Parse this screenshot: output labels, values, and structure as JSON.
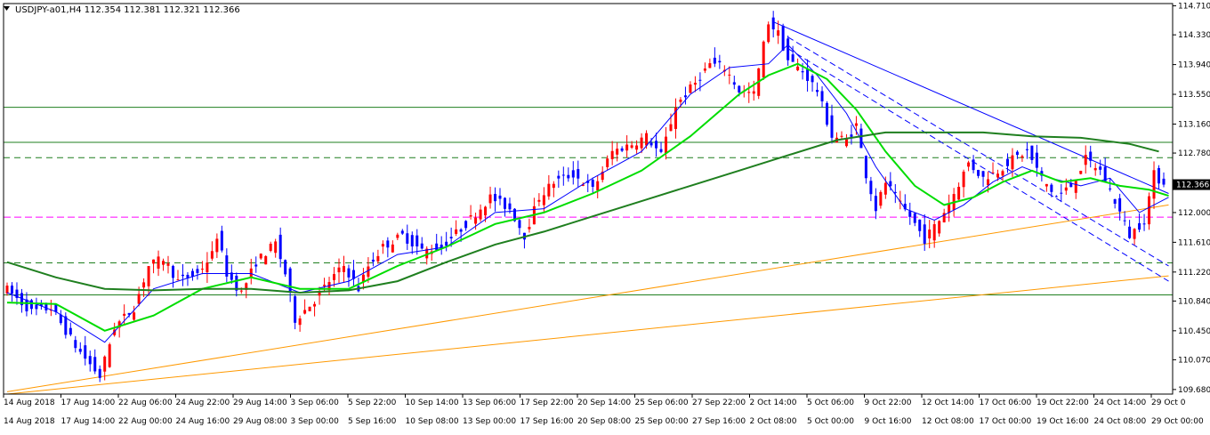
{
  "header": {
    "symbol_line": "USDJPY-a01,H4  112.354 112.381 112.321 112.366",
    "dropdown_icon": "triangle-down-icon"
  },
  "colors": {
    "background": "#ffffff",
    "grid_fill": "#ffffff",
    "bull": "#ff0000",
    "bear": "#0000ff",
    "ma_fast": "#0000ff",
    "ma_mid": "#00dd00",
    "ma_slow": "#1f7f1f",
    "hline": "#1f7f1f",
    "magenta_line": "#ff00ff",
    "trend_orange": "#ff9900",
    "trend_blue": "#0000ff",
    "price_tag_bg": "#000000",
    "price_tag_text": "#ffffff"
  },
  "chart_data": {
    "type": "candlestick",
    "title": "USDJPY-a01,H4",
    "ohlc_readout": {
      "open": 112.354,
      "high": 112.381,
      "low": 112.321,
      "close": 112.366
    },
    "current_price": "112.366",
    "y_ticks": [
      "114.710",
      "114.330",
      "113.940",
      "113.550",
      "113.160",
      "112.780",
      "112.000",
      "111.610",
      "111.220",
      "110.840",
      "110.450",
      "110.070",
      "109.680"
    ],
    "ylim": [
      109.62,
      114.74
    ],
    "x_ticks_top": [
      "14 Aug 2018",
      "17 Aug 14:00",
      "22 Aug 06:00",
      "24 Aug 22:00",
      "29 Aug 14:00",
      "3 Sep 06:00",
      "5 Sep 22:00",
      "10 Sep 14:00",
      "13 Sep 06:00",
      "17 Sep 22:00",
      "20 Sep 14:00",
      "25 Sep 06:00",
      "27 Sep 22:00",
      "2 Oct 14:00",
      "5 Oct 06:00",
      "9 Oct 22:00",
      "12 Oct 14:00",
      "17 Oct 06:00",
      "19 Oct 22:00",
      "24 Oct 14:00",
      "29 Oct 0"
    ],
    "x_ticks_bottom": [
      "14 Aug 2018",
      "17 Aug 14:00",
      "22 Aug 00:00",
      "24 Aug 16:00",
      "29 Aug 08:00",
      "3 Sep 00:00",
      "5 Sep 16:00",
      "10 Sep 08:00",
      "13 Sep 00:00",
      "17 Sep 16:00",
      "20 Sep 08:00",
      "25 Sep 00:00",
      "27 Sep 16:00",
      "2 Oct 08:00",
      "5 Oct 00:00",
      "9 Oct 16:00",
      "12 Oct 08:00",
      "17 Oct 00:00",
      "19 Oct 16:00",
      "24 Oct 08:00",
      "29 Oct 00:00"
    ],
    "horizontal_lines": [
      {
        "price": 113.38,
        "style": "solid",
        "color": "hline"
      },
      {
        "price": 112.92,
        "style": "solid",
        "color": "hline"
      },
      {
        "price": 112.72,
        "style": "dashed",
        "color": "hline"
      },
      {
        "price": 111.34,
        "style": "dashed",
        "color": "hline"
      },
      {
        "price": 110.92,
        "style": "solid",
        "color": "hline"
      },
      {
        "price": 111.94,
        "style": "dashed",
        "color": "magenta_line"
      }
    ],
    "price_path": [
      [
        0,
        111.05
      ],
      [
        6,
        110.7
      ],
      [
        10,
        110.75
      ],
      [
        15,
        110.25
      ],
      [
        20,
        109.85
      ],
      [
        23,
        110.5
      ],
      [
        27,
        110.75
      ],
      [
        30,
        111.3
      ],
      [
        33,
        111.4
      ],
      [
        36,
        111.1
      ],
      [
        40,
        111.2
      ],
      [
        43,
        111.45
      ],
      [
        44,
        111.7
      ],
      [
        46,
        111.2
      ],
      [
        49,
        110.95
      ],
      [
        52,
        111.35
      ],
      [
        56,
        111.6
      ],
      [
        58,
        111.2
      ],
      [
        60,
        110.6
      ],
      [
        64,
        110.85
      ],
      [
        67,
        111.1
      ],
      [
        70,
        111.3
      ],
      [
        73,
        111.0
      ],
      [
        75,
        111.3
      ],
      [
        78,
        111.55
      ],
      [
        82,
        111.7
      ],
      [
        86,
        111.5
      ],
      [
        90,
        111.55
      ],
      [
        95,
        111.85
      ],
      [
        100,
        112.2
      ],
      [
        104,
        112.05
      ],
      [
        107,
        111.7
      ],
      [
        110,
        112.2
      ],
      [
        113,
        112.4
      ],
      [
        117,
        112.5
      ],
      [
        121,
        112.3
      ],
      [
        125,
        112.8
      ],
      [
        129,
        112.9
      ],
      [
        132,
        113.0
      ],
      [
        135,
        112.75
      ],
      [
        138,
        113.4
      ],
      [
        142,
        113.7
      ],
      [
        145,
        113.95
      ],
      [
        148,
        113.9
      ],
      [
        151,
        113.6
      ],
      [
        154,
        113.55
      ],
      [
        156,
        114.2
      ],
      [
        157,
        114.5
      ],
      [
        159,
        114.35
      ],
      [
        161,
        114.0
      ],
      [
        164,
        113.85
      ],
      [
        167,
        113.6
      ],
      [
        170,
        113.0
      ],
      [
        173,
        112.95
      ],
      [
        175,
        113.15
      ],
      [
        177,
        112.5
      ],
      [
        179,
        112.05
      ],
      [
        181,
        112.4
      ],
      [
        184,
        112.1
      ],
      [
        186,
        111.95
      ],
      [
        189,
        111.65
      ],
      [
        192,
        111.9
      ],
      [
        195,
        112.25
      ],
      [
        198,
        112.65
      ],
      [
        201,
        112.45
      ],
      [
        204,
        112.55
      ],
      [
        207,
        112.7
      ],
      [
        210,
        112.8
      ],
      [
        213,
        112.45
      ],
      [
        216,
        112.2
      ],
      [
        219,
        112.35
      ],
      [
        222,
        112.7
      ],
      [
        225,
        112.55
      ],
      [
        228,
        112.15
      ],
      [
        231,
        111.7
      ],
      [
        234,
        111.9
      ],
      [
        236,
        112.5
      ],
      [
        238,
        112.37
      ]
    ],
    "moving_averages": [
      {
        "name": "fast",
        "color": "ma_fast",
        "period_label": "",
        "points": [
          [
            0,
            110.95
          ],
          [
            10,
            110.7
          ],
          [
            20,
            110.3
          ],
          [
            30,
            111.0
          ],
          [
            40,
            111.2
          ],
          [
            50,
            111.2
          ],
          [
            60,
            110.95
          ],
          [
            70,
            111.1
          ],
          [
            80,
            111.45
          ],
          [
            90,
            111.55
          ],
          [
            100,
            112.0
          ],
          [
            110,
            112.05
          ],
          [
            120,
            112.45
          ],
          [
            130,
            112.8
          ],
          [
            140,
            113.55
          ],
          [
            148,
            113.9
          ],
          [
            156,
            113.95
          ],
          [
            160,
            114.2
          ],
          [
            166,
            113.8
          ],
          [
            172,
            113.3
          ],
          [
            178,
            112.6
          ],
          [
            184,
            112.05
          ],
          [
            190,
            111.9
          ],
          [
            196,
            112.1
          ],
          [
            202,
            112.4
          ],
          [
            208,
            112.6
          ],
          [
            214,
            112.45
          ],
          [
            220,
            112.35
          ],
          [
            226,
            112.45
          ],
          [
            232,
            112.0
          ],
          [
            238,
            112.2
          ]
        ]
      },
      {
        "name": "mid",
        "color": "ma_mid",
        "period_label": "",
        "points": [
          [
            0,
            110.82
          ],
          [
            10,
            110.8
          ],
          [
            20,
            110.45
          ],
          [
            30,
            110.65
          ],
          [
            40,
            111.0
          ],
          [
            50,
            111.15
          ],
          [
            60,
            111.0
          ],
          [
            70,
            111.0
          ],
          [
            80,
            111.3
          ],
          [
            90,
            111.55
          ],
          [
            100,
            111.85
          ],
          [
            110,
            112.0
          ],
          [
            120,
            112.25
          ],
          [
            130,
            112.55
          ],
          [
            140,
            113.0
          ],
          [
            150,
            113.55
          ],
          [
            156,
            113.8
          ],
          [
            162,
            113.95
          ],
          [
            168,
            113.75
          ],
          [
            174,
            113.35
          ],
          [
            180,
            112.8
          ],
          [
            186,
            112.35
          ],
          [
            192,
            112.1
          ],
          [
            198,
            112.2
          ],
          [
            204,
            112.4
          ],
          [
            210,
            112.55
          ],
          [
            216,
            112.4
          ],
          [
            222,
            112.45
          ],
          [
            228,
            112.35
          ],
          [
            234,
            112.3
          ],
          [
            238,
            112.22
          ]
        ]
      },
      {
        "name": "slow",
        "color": "ma_slow",
        "period_label": "",
        "points": [
          [
            0,
            111.35
          ],
          [
            10,
            111.15
          ],
          [
            20,
            111.0
          ],
          [
            30,
            110.98
          ],
          [
            40,
            111.0
          ],
          [
            50,
            111.0
          ],
          [
            60,
            110.95
          ],
          [
            70,
            110.98
          ],
          [
            80,
            111.1
          ],
          [
            90,
            111.35
          ],
          [
            100,
            111.58
          ],
          [
            110,
            111.75
          ],
          [
            120,
            111.95
          ],
          [
            130,
            112.15
          ],
          [
            140,
            112.35
          ],
          [
            150,
            112.55
          ],
          [
            160,
            112.75
          ],
          [
            170,
            112.95
          ],
          [
            180,
            113.05
          ],
          [
            190,
            113.05
          ],
          [
            200,
            113.05
          ],
          [
            210,
            113.0
          ],
          [
            220,
            112.98
          ],
          [
            230,
            112.9
          ],
          [
            236,
            112.8
          ]
        ]
      }
    ],
    "trendlines": [
      {
        "color": "trend_orange",
        "style": "solid",
        "from": [
          0,
          109.65
        ],
        "to": [
          238,
          112.1
        ]
      },
      {
        "color": "trend_orange",
        "style": "solid",
        "from": [
          0,
          109.62
        ],
        "to": [
          238,
          111.17
        ]
      },
      {
        "color": "trend_blue",
        "style": "solid",
        "from": [
          157,
          114.5
        ],
        "to": [
          238,
          112.25
        ]
      },
      {
        "color": "trend_blue",
        "style": "dashed",
        "from": [
          160,
          114.3
        ],
        "to": [
          238,
          111.3
        ]
      },
      {
        "color": "trend_blue",
        "style": "dashed",
        "from": [
          160,
          114.15
        ],
        "to": [
          238,
          111.1
        ]
      }
    ],
    "candle_count": 238,
    "grid": false,
    "legend": "none"
  }
}
